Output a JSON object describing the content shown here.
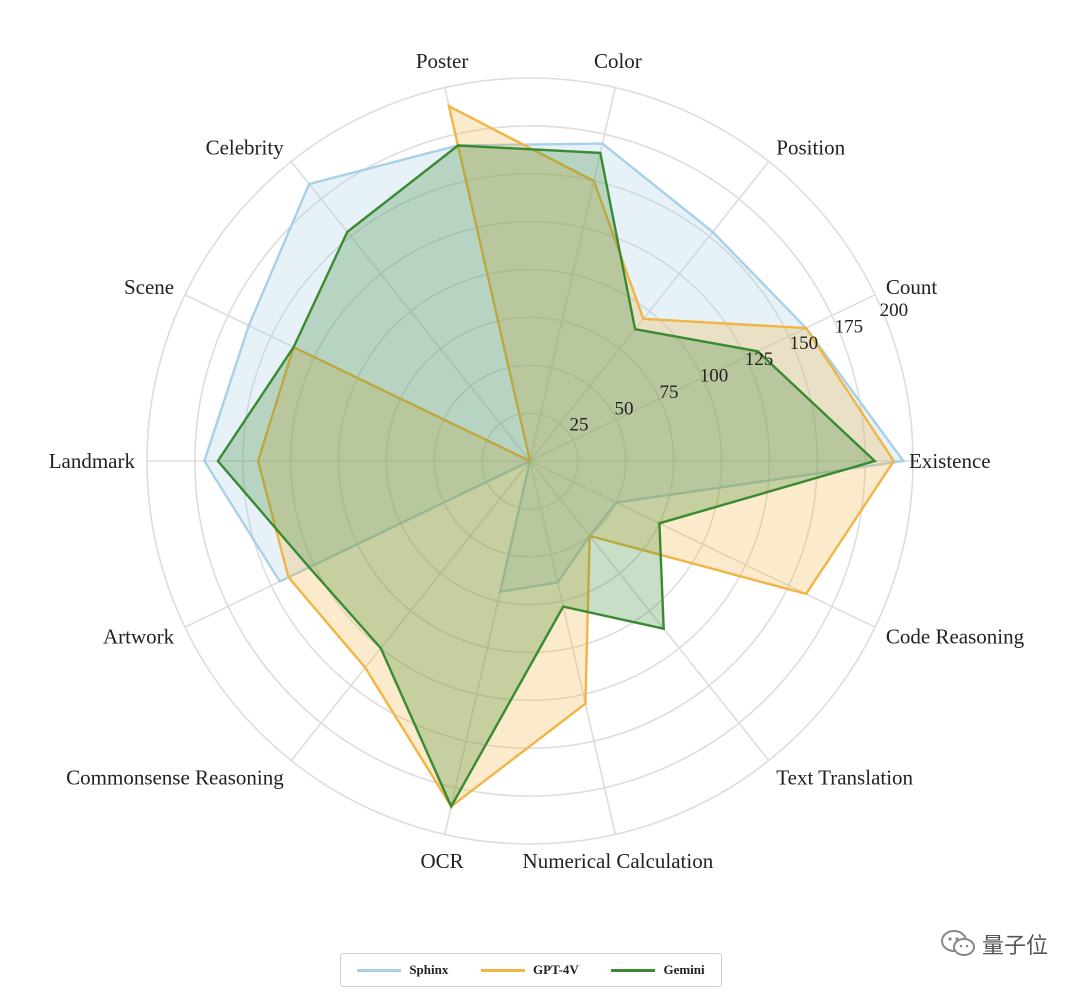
{
  "chart_data": {
    "type": "radar",
    "axes": [
      "Existence",
      "Count",
      "Position",
      "Color",
      "Poster",
      "Celebrity",
      "Scene",
      "Landmark",
      "Artwork",
      "Commonsense Reasoning",
      "OCR",
      "Numerical Calculation",
      "Text Translation",
      "Code Reasoning"
    ],
    "r_ticks": [
      25,
      50,
      75,
      100,
      125,
      150,
      175,
      200
    ],
    "r_range": [
      0,
      200
    ],
    "series": [
      {
        "name": "Sphinx",
        "color": "#a8d1e7",
        "values": [
          195,
          160,
          153,
          170,
          169,
          185,
          163,
          170,
          145,
          0,
          70,
          65,
          50,
          50
        ]
      },
      {
        "name": "GPT-4V",
        "color": "#f0b545",
        "values": [
          190,
          160,
          95,
          150,
          190,
          0,
          137,
          142,
          140,
          138,
          185,
          130,
          50,
          160
        ]
      },
      {
        "name": "Gemini",
        "color": "#3a8a32",
        "values": [
          180,
          132,
          88,
          165,
          169,
          153,
          137,
          163,
          128,
          125,
          185,
          78,
          112,
          75
        ]
      }
    ],
    "grid": true,
    "legend": "bottom"
  },
  "watermark": {
    "text": "量子位"
  }
}
